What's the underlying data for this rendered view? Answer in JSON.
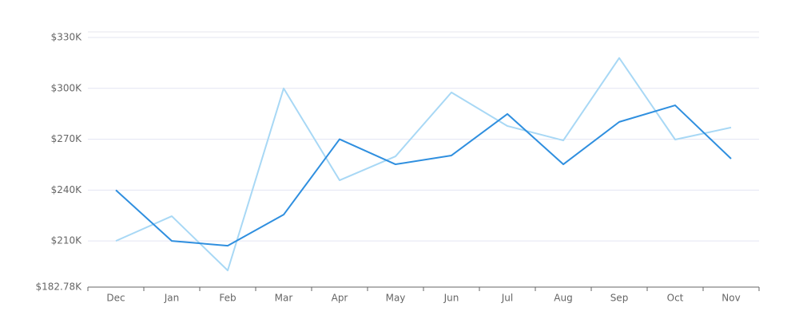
{
  "chart_data": {
    "type": "line",
    "categories": [
      "Dec",
      "Jan",
      "Feb",
      "Mar",
      "Apr",
      "May",
      "Jun",
      "Jul",
      "Aug",
      "Sep",
      "Oct",
      "Nov"
    ],
    "series": [
      {
        "color": "#a8d8f5",
        "values": [
          210000,
          224600,
          192600,
          300000,
          245800,
          259900,
          297600,
          277800,
          269300,
          317900,
          269800,
          276900
        ]
      },
      {
        "color": "#2f8fdf",
        "values": [
          240000,
          210000,
          207200,
          225500,
          270000,
          255200,
          260400,
          284900,
          255200,
          280200,
          290000,
          258500
        ]
      }
    ],
    "ylim": [
      182780,
      333300
    ],
    "yticks": [
      {
        "value": 182780,
        "label": "$182.78K"
      },
      {
        "value": 210000,
        "label": "$210K"
      },
      {
        "value": 240000,
        "label": "$240K"
      },
      {
        "value": 270000,
        "label": "$270K"
      },
      {
        "value": 300000,
        "label": "$300K"
      },
      {
        "value": 330000,
        "label": "$330K"
      }
    ],
    "grid": true
  }
}
